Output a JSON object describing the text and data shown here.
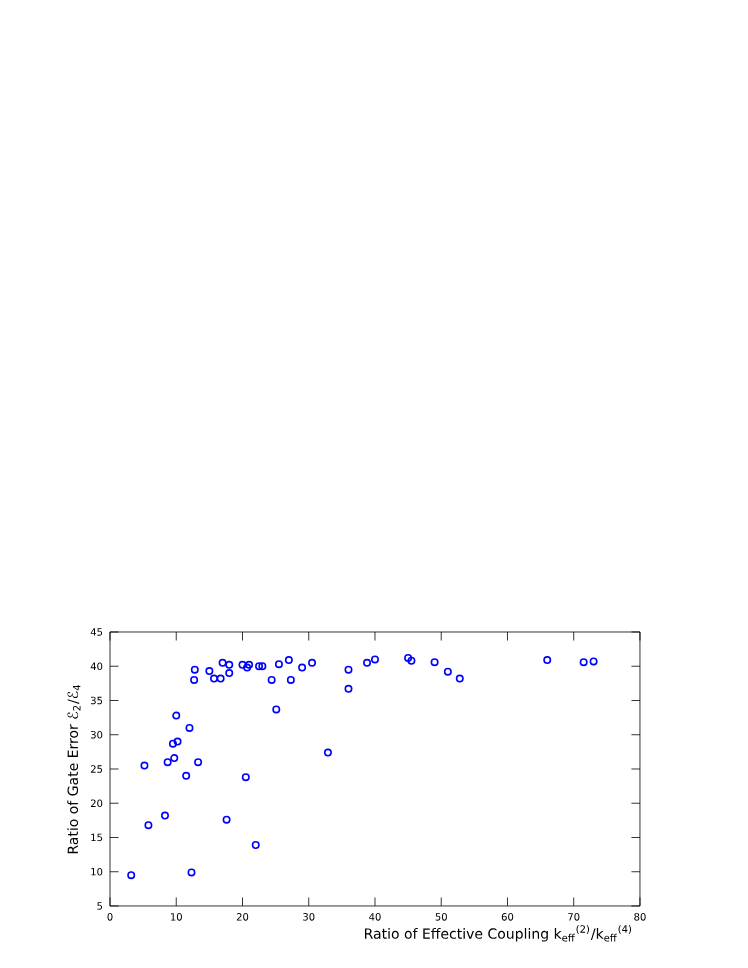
{
  "chart_data": {
    "type": "scatter",
    "xlabel": "Ratio of Effective Coupling k$_{eff}$$^{(2)}$/k$_{eff}$$^{(4)}$",
    "ylabel": "Ratio of Gate Error ℰ$_{2}$/ℰ$_{4}$",
    "marker": "circle",
    "grid": false,
    "xlim": [
      0,
      80
    ],
    "ylim": [
      5,
      45
    ],
    "xticks": [
      0,
      10,
      20,
      30,
      40,
      50,
      60,
      70,
      80
    ],
    "yticks": [
      5,
      10,
      15,
      20,
      25,
      30,
      35,
      40,
      45
    ],
    "series": [
      {
        "color": "#0000ff",
        "x": [
          3.2,
          5.2,
          5.8,
          8.3,
          8.7,
          9.5,
          9.7,
          10,
          10.2,
          11.5,
          12,
          12.3,
          12.7,
          12.8,
          13.3,
          15,
          15.7,
          16.7,
          17,
          17.6,
          18,
          18,
          20,
          20.5,
          20.7,
          21,
          22,
          22.5,
          23,
          24.4,
          25.1,
          25.5,
          27,
          27.3,
          29,
          30.5,
          32.9,
          36,
          36,
          38.8,
          40,
          45,
          45.5,
          49,
          51,
          52.8,
          66,
          71.5,
          73
        ],
        "values": [
          9.5,
          25.5,
          16.8,
          18.2,
          26,
          28.7,
          26.6,
          32.8,
          29,
          24,
          31,
          9.9,
          38,
          39.5,
          26,
          39.3,
          38.2,
          38.2,
          40.5,
          17.6,
          39,
          40.2,
          40.2,
          23.8,
          39.8,
          40.2,
          13.9,
          40,
          40,
          38,
          33.7,
          40.3,
          40.9,
          38,
          39.8,
          40.5,
          27.4,
          39.5,
          36.7,
          40.5,
          41,
          41.2,
          40.8,
          40.6,
          39.2,
          38.2,
          40.9,
          40.6,
          40.7
        ]
      }
    ]
  }
}
